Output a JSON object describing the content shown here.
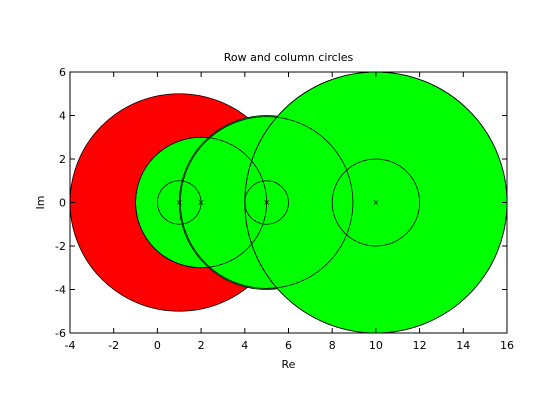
{
  "chart_data": {
    "type": "scatter",
    "title": "Row and column circles",
    "xlabel": "Re",
    "ylabel": "Im",
    "xlim": [
      -4,
      16
    ],
    "ylim": [
      -6,
      6
    ],
    "x_ticks": [
      -4,
      -2,
      0,
      2,
      4,
      6,
      8,
      10,
      12,
      14,
      16
    ],
    "y_ticks": [
      -6,
      -4,
      -2,
      0,
      2,
      4,
      6
    ],
    "grid": false,
    "filled_circles": [
      {
        "group": "row",
        "center": [
          1,
          0
        ],
        "radius": 5,
        "color": "#ff0000"
      },
      {
        "group": "column",
        "center": [
          2,
          0
        ],
        "radius": 3,
        "color": "#00ff00"
      },
      {
        "group": "column",
        "center": [
          5,
          0
        ],
        "radius": 4,
        "color": "#00ff00"
      },
      {
        "group": "column",
        "center": [
          10,
          0
        ],
        "radius": 6,
        "color": "#00ff00"
      }
    ],
    "outline_circles": [
      {
        "center": [
          1,
          0
        ],
        "radius": 1
      },
      {
        "center": [
          2,
          0
        ],
        "radius": 3
      },
      {
        "center": [
          5,
          0
        ],
        "radius": 1
      },
      {
        "center": [
          5,
          0
        ],
        "radius": 3.95
      },
      {
        "center": [
          10,
          0
        ],
        "radius": 2
      },
      {
        "center": [
          10,
          0
        ],
        "radius": 6
      }
    ],
    "centers": [
      [
        1,
        0
      ],
      [
        2,
        0
      ],
      [
        5,
        0
      ],
      [
        10,
        0
      ]
    ]
  }
}
